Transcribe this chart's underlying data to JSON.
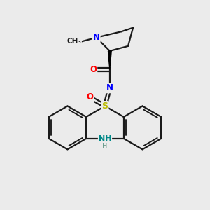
{
  "bg_color": "#ebebeb",
  "bond_color": "#1a1a1a",
  "bond_width": 1.6,
  "atom_colors": {
    "N": "#0000ff",
    "O": "#ff0000",
    "S": "#bbbb00",
    "NH": "#008888",
    "C": "#1a1a1a"
  },
  "scale": 1.0
}
